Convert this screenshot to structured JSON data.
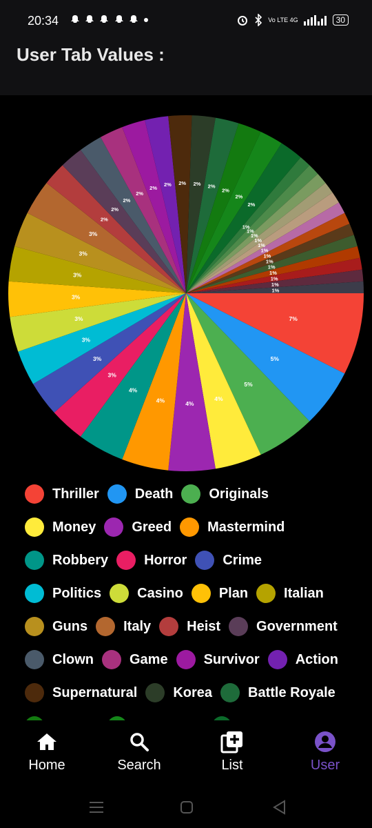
{
  "status_bar": {
    "time": "20:34",
    "left_icons": "ghost-icon ghost-icon ghost-icon ghost-icon dot",
    "network": "Vo LTE 4G",
    "battery": "30"
  },
  "header": {
    "title": "User Tab Values :"
  },
  "chart_data": {
    "type": "pie",
    "title": "",
    "slices": [
      {
        "label": "Thriller",
        "value": 7,
        "color": "#f44336"
      },
      {
        "label": "Death",
        "value": 5,
        "color": "#2196f3"
      },
      {
        "label": "Originals",
        "value": 5,
        "color": "#4caf50"
      },
      {
        "label": "Money",
        "value": 4,
        "color": "#ffeb3b"
      },
      {
        "label": "Greed",
        "value": 4,
        "color": "#9c27b0"
      },
      {
        "label": "Mastermind",
        "value": 4,
        "color": "#ff9800"
      },
      {
        "label": "Robbery",
        "value": 4,
        "color": "#009688"
      },
      {
        "label": "Horror",
        "value": 3,
        "color": "#e91e63"
      },
      {
        "label": "Crime",
        "value": 3,
        "color": "#3f51b5"
      },
      {
        "label": "Politics",
        "value": 3,
        "color": "#00bcd4"
      },
      {
        "label": "Casino",
        "value": 3,
        "color": "#cddc39"
      },
      {
        "label": "Plan",
        "value": 3,
        "color": "#ffc107"
      },
      {
        "label": "Italian",
        "value": 3,
        "color": "#b5a300"
      },
      {
        "label": "Guns",
        "value": 3,
        "color": "#b8901e"
      },
      {
        "label": "Italy",
        "value": 3,
        "color": "#b3672f"
      },
      {
        "label": "Heist",
        "value": 2,
        "color": "#b33d3d"
      },
      {
        "label": "Government",
        "value": 2,
        "color": "#5a3d58"
      },
      {
        "label": "Clown",
        "value": 2,
        "color": "#4a5a6a"
      },
      {
        "label": "Game",
        "value": 2,
        "color": "#a8317e"
      },
      {
        "label": "Survivor",
        "value": 2,
        "color": "#9c1aa0"
      },
      {
        "label": "Action",
        "value": 2,
        "color": "#7321b0"
      },
      {
        "label": "Supernatural",
        "value": 2,
        "color": "#4d2a0c"
      },
      {
        "label": "Korea",
        "value": 2,
        "color": "#2c3d28"
      },
      {
        "label": "Battle Royale",
        "value": 2,
        "color": "#1e6b3a"
      },
      {
        "label": "",
        "value": 2,
        "color": "#137a10"
      },
      {
        "label": "",
        "value": 2,
        "color": "#15861a"
      },
      {
        "label": "",
        "value": 2,
        "color": "#0b6a2a"
      },
      {
        "label": "",
        "value": 1,
        "color": "#2f7a3c"
      },
      {
        "label": "",
        "value": 1,
        "color": "#4d8a4a"
      },
      {
        "label": "",
        "value": 1,
        "color": "#7a9b60"
      },
      {
        "label": "",
        "value": 1,
        "color": "#a29c74"
      },
      {
        "label": "",
        "value": 1,
        "color": "#b99c7e"
      },
      {
        "label": "",
        "value": 1,
        "color": "#b76aa6"
      },
      {
        "label": "",
        "value": 1,
        "color": "#b8470e"
      },
      {
        "label": "",
        "value": 1,
        "color": "#5a3a1a"
      },
      {
        "label": "",
        "value": 1,
        "color": "#3d5c2e"
      },
      {
        "label": "",
        "value": 1,
        "color": "#b03a00"
      },
      {
        "label": "",
        "value": 1,
        "color": "#a81c1c"
      },
      {
        "label": "",
        "value": 1,
        "color": "#5e2a3e"
      },
      {
        "label": "",
        "value": 1,
        "color": "#3c3c4a"
      }
    ],
    "data_labels": [
      "7%",
      "5%",
      "5%",
      "4%",
      "4%",
      "4%",
      "4%",
      "3%",
      "3%",
      "3%",
      "3%",
      "3%",
      "3%",
      "3%",
      "3%",
      "2%",
      "2%",
      "2%",
      "2%",
      "2%",
      "2%",
      "2%",
      "2%",
      "2%",
      "2%",
      "2%",
      "2%",
      "1%",
      "1%",
      "1%",
      "1%",
      "1%",
      "1%",
      "1%",
      "1%",
      "1%",
      "1%",
      "1%",
      "1%",
      "1%"
    ],
    "legend_position": "bottom"
  },
  "legend_rows": [
    [
      0,
      1,
      2
    ],
    [
      3,
      4,
      5
    ],
    [
      6,
      7,
      8
    ],
    [
      9,
      10,
      11,
      12
    ],
    [
      13,
      14,
      15,
      16
    ],
    [
      17,
      18,
      19,
      20
    ],
    [
      21,
      22,
      23
    ]
  ],
  "nav": {
    "items": [
      {
        "label": "Home",
        "icon": "home-icon",
        "active": false
      },
      {
        "label": "Search",
        "icon": "search-icon",
        "active": false
      },
      {
        "label": "List",
        "icon": "add-list-icon",
        "active": false
      },
      {
        "label": "User",
        "icon": "user-icon",
        "active": true
      }
    ],
    "active_color": "#7a52c9"
  }
}
